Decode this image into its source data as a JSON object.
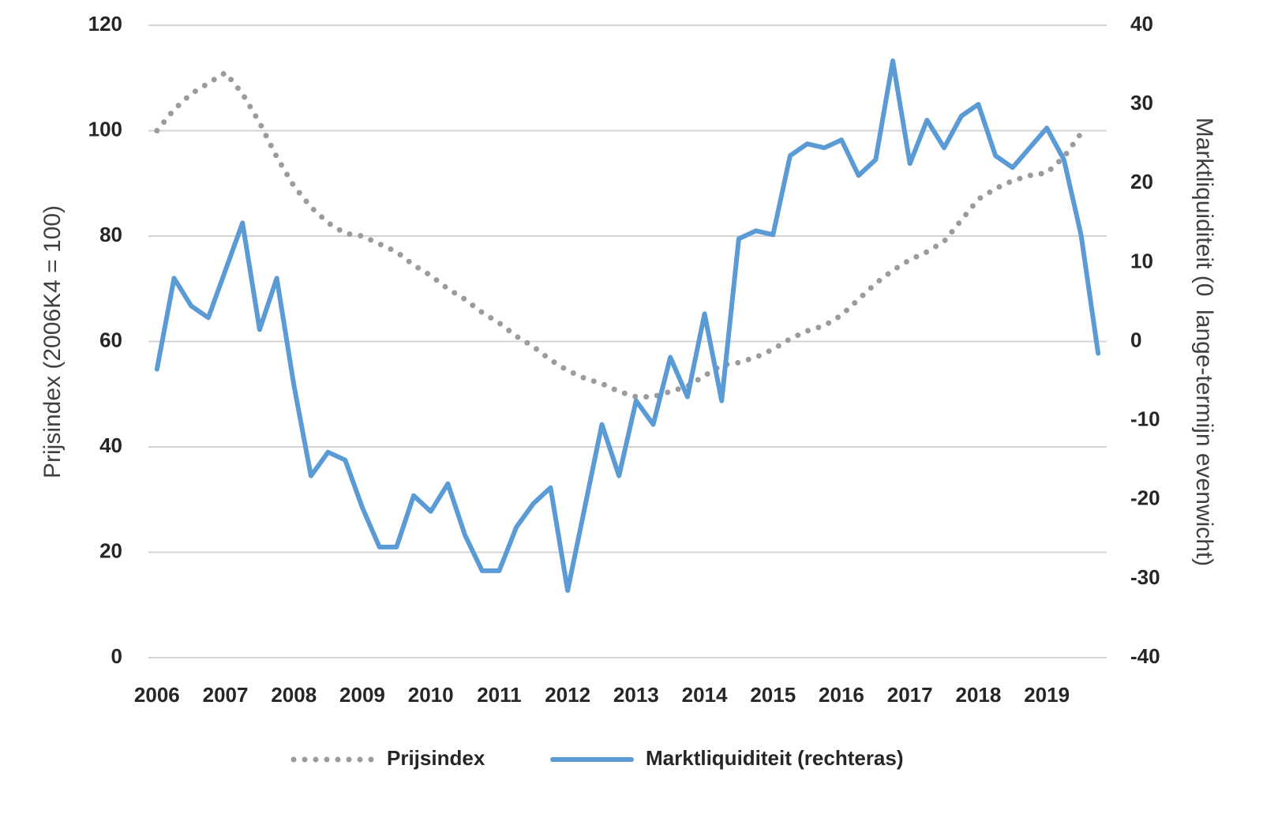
{
  "chart_data": {
    "type": "line",
    "categories": [
      "2006",
      null,
      null,
      null,
      "2007",
      null,
      null,
      null,
      "2008",
      null,
      null,
      null,
      "2009",
      null,
      null,
      null,
      "2010",
      null,
      null,
      null,
      "2011",
      null,
      null,
      null,
      "2012",
      null,
      null,
      null,
      "2013",
      null,
      null,
      null,
      "2014",
      null,
      null,
      null,
      "2015",
      null,
      null,
      null,
      "2016",
      null,
      null,
      null,
      "2017",
      null,
      null,
      null,
      "2018",
      null,
      null,
      null,
      "2019",
      null,
      null,
      null
    ],
    "series": [
      {
        "name": "Prijsindex",
        "color": "#9b9b9b",
        "style": "dotted",
        "axis": "y",
        "values": [
          100,
          104,
          107,
          109,
          111,
          107,
          101.5,
          95,
          89.5,
          85.5,
          82.5,
          80.5,
          80,
          78.5,
          77,
          74.5,
          72.5,
          70,
          68,
          65.5,
          63.5,
          61,
          59,
          56.5,
          54.5,
          53,
          52,
          50.5,
          49.5,
          49.5,
          50.5,
          51.5,
          53.5,
          55.5,
          56,
          57,
          58.5,
          60.5,
          62,
          63,
          65,
          68,
          71,
          73.5,
          75.5,
          77,
          79,
          83,
          87,
          89,
          90.5,
          91.5,
          92,
          95,
          99.5,
          null
        ]
      },
      {
        "name": "Marktliquiditeit (rechteras)",
        "color": "#5b9bd5",
        "style": "solid",
        "axis": "y2",
        "values": [
          -3.5,
          8,
          4.5,
          3,
          9,
          15,
          1.5,
          8,
          -5.5,
          -17,
          -14,
          -15,
          -21,
          -26,
          -26,
          -19.5,
          -21.5,
          -18,
          -24.5,
          -29,
          -29,
          -23.5,
          -20.5,
          -18.5,
          -31.5,
          -21,
          -10.5,
          -17,
          -7.5,
          -10.5,
          -2,
          -7,
          3.5,
          -7.5,
          13,
          14,
          13.5,
          23.5,
          25,
          24.5,
          25.5,
          21,
          23,
          35.5,
          22.5,
          28,
          24.5,
          28.5,
          30,
          23.5,
          22,
          24.5,
          27,
          23,
          13.5,
          -1.5
        ]
      }
    ],
    "y_label": "Prijsindex (2006K4 = 100)",
    "y2_label": "Marktliquiditeit (0  lange-termijn evenwicht)",
    "ylim": [
      0,
      120
    ],
    "yticks": [
      0,
      20,
      40,
      60,
      80,
      100,
      120
    ],
    "y2lim": [
      -40,
      40
    ],
    "y2ticks": [
      -40,
      -30,
      -20,
      -10,
      0,
      10,
      20,
      30,
      40
    ],
    "grid": true,
    "legend": "bottom"
  }
}
